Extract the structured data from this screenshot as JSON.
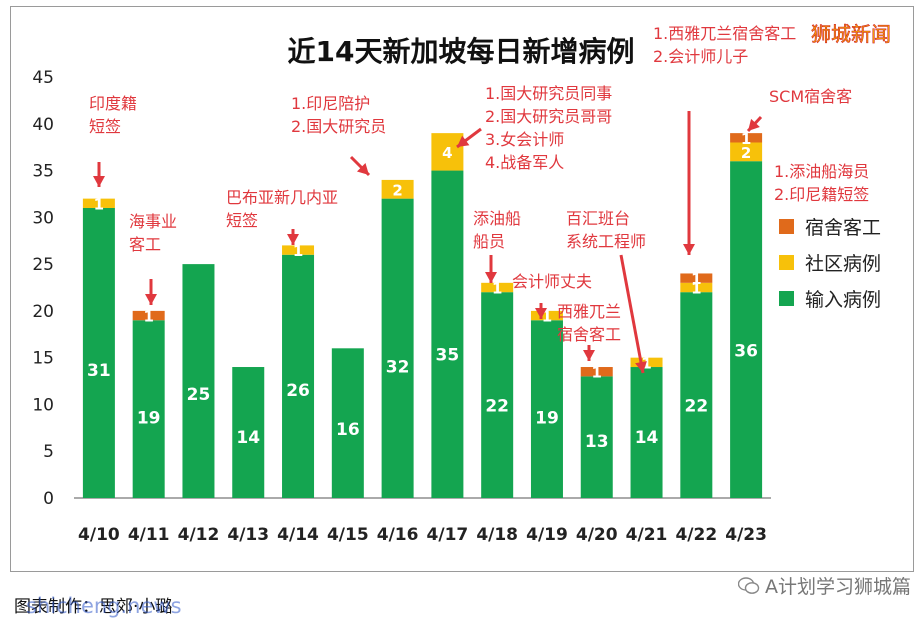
{
  "chart_data": {
    "type": "bar",
    "stacked": true,
    "title": "近14天新加坡每日新增病例",
    "categories": [
      "4/10",
      "4/11",
      "4/12",
      "4/13",
      "4/14",
      "4/15",
      "4/16",
      "4/17",
      "4/18",
      "4/19",
      "4/20",
      "4/21",
      "4/22",
      "4/23"
    ],
    "series": [
      {
        "name": "输入病例",
        "color": "#14a550",
        "values": [
          31,
          19,
          25,
          14,
          26,
          16,
          32,
          35,
          22,
          19,
          13,
          14,
          22,
          36
        ]
      },
      {
        "name": "社区病例",
        "color": "#f7c10a",
        "values": [
          1,
          0,
          0,
          0,
          1,
          0,
          2,
          4,
          1,
          1,
          0,
          1,
          1,
          2
        ]
      },
      {
        "name": "宿舍客工",
        "color": "#e06a1b",
        "values": [
          0,
          1,
          0,
          0,
          0,
          0,
          0,
          0,
          0,
          0,
          1,
          0,
          1,
          1
        ]
      }
    ],
    "ylim": [
      0,
      45
    ],
    "yticks": [
      0,
      5,
      10,
      15,
      20,
      25,
      30,
      35,
      40,
      45
    ],
    "legend_position": "right",
    "grid": false,
    "annotations": [
      {
        "lines": [
          "印度籍",
          "短签"
        ]
      },
      {
        "lines": [
          "海事业",
          "客工"
        ]
      },
      {
        "lines": [
          "巴布亚新几内亚",
          "短签"
        ]
      },
      {
        "lines": [
          "1.印尼陪护",
          "2.国大研究员"
        ]
      },
      {
        "lines": [
          "1.国大研究员同事",
          "2.国大研究员哥哥",
          "3.女会计师",
          "4.战备军人"
        ]
      },
      {
        "lines": [
          "添油船",
          "船员"
        ]
      },
      {
        "lines": [
          "会计师丈夫"
        ]
      },
      {
        "lines": [
          "西雅兀兰",
          "宿舍客工"
        ]
      },
      {
        "lines": [
          "百汇班台",
          "系统工程师"
        ]
      },
      {
        "lines": [
          "1.西雅兀兰宿舍客工",
          "2.会计师儿子"
        ]
      },
      {
        "lines": [
          "SCM宿舍客"
        ]
      },
      {
        "lines": [
          "1.添油船海员",
          "2.印尼籍短签"
        ]
      }
    ]
  },
  "watermark": {
    "brand": "狮城新闻",
    "credit": "图表制作：思郊·小璐",
    "site": "shicheng.news",
    "account": "A计划学习狮城篇"
  }
}
